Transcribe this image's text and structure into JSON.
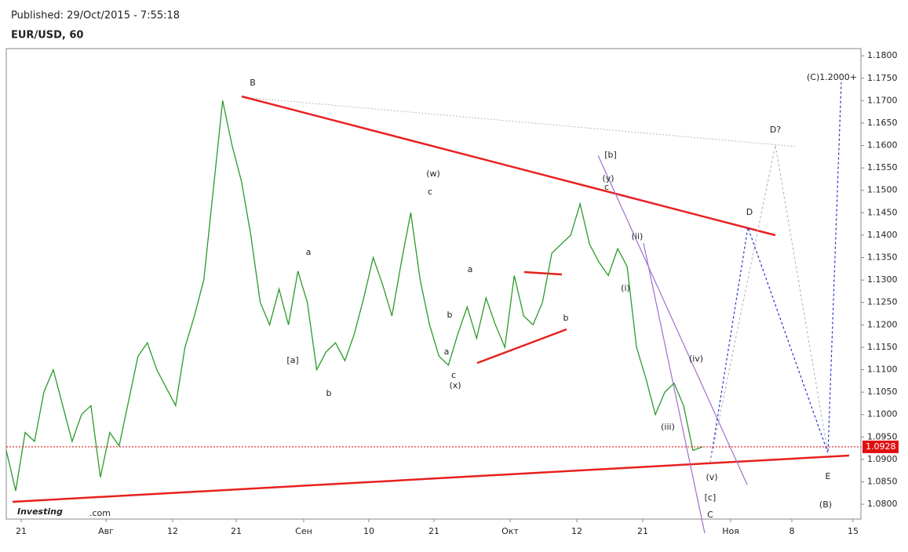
{
  "header": {
    "published": "Published: 29/Oct/2015 - 7:55:18",
    "symbol": "EUR/USD, 60"
  },
  "logo": {
    "brand": "Investing",
    "suffix": ".com"
  },
  "chart_data": {
    "type": "line",
    "series": [
      {
        "name": "EUR/USD",
        "color": "#2a9a2a",
        "values": [
          1.092,
          1.083,
          1.096,
          1.094,
          1.105,
          1.11,
          1.102,
          1.094,
          1.1,
          1.102,
          1.086,
          1.096,
          1.093,
          1.103,
          1.113,
          1.116,
          1.11,
          1.106,
          1.102,
          1.115,
          1.122,
          1.13,
          1.15,
          1.17,
          1.16,
          1.152,
          1.14,
          1.125,
          1.12,
          1.128,
          1.12,
          1.132,
          1.125,
          1.11,
          1.114,
          1.116,
          1.112,
          1.118,
          1.126,
          1.135,
          1.129,
          1.122,
          1.134,
          1.145,
          1.13,
          1.12,
          1.113,
          1.111,
          1.118,
          1.124,
          1.117,
          1.126,
          1.12,
          1.115,
          1.131,
          1.122,
          1.12,
          1.125,
          1.136,
          1.138,
          1.14,
          1.147,
          1.138,
          1.134,
          1.131,
          1.137,
          1.133,
          1.115,
          1.108,
          1.1,
          1.105,
          1.107,
          1.102,
          1.092,
          1.0928
        ]
      }
    ],
    "last_price": 1.0928,
    "ylim": [
      1.0767,
      1.1816
    ],
    "yticks": [
      {
        "value": 1.08,
        "label": "1.0800"
      },
      {
        "value": 1.085,
        "label": "1.0850"
      },
      {
        "value": 1.09,
        "label": "1.0900"
      },
      {
        "value": 1.095,
        "label": "1.0950"
      },
      {
        "value": 1.1,
        "label": "1.1000"
      },
      {
        "value": 1.105,
        "label": "1.1050"
      },
      {
        "value": 1.11,
        "label": "1.1100"
      },
      {
        "value": 1.115,
        "label": "1.1150"
      },
      {
        "value": 1.12,
        "label": "1.1200"
      },
      {
        "value": 1.125,
        "label": "1.1250"
      },
      {
        "value": 1.13,
        "label": "1.1300"
      },
      {
        "value": 1.135,
        "label": "1.1350"
      },
      {
        "value": 1.14,
        "label": "1.1400"
      },
      {
        "value": 1.145,
        "label": "1.1450"
      },
      {
        "value": 1.15,
        "label": "1.1500"
      },
      {
        "value": 1.155,
        "label": "1.1550"
      },
      {
        "value": 1.16,
        "label": "1.1600"
      },
      {
        "value": 1.165,
        "label": "1.1650"
      },
      {
        "value": 1.17,
        "label": "1.1700"
      },
      {
        "value": 1.175,
        "label": "1.1750"
      },
      {
        "value": 1.18,
        "label": "1.1800"
      }
    ],
    "x_labels": [
      "21",
      "Авг",
      "12",
      "21",
      "Сен",
      "10",
      "21",
      "Окт",
      "12",
      "21",
      "Ноя",
      "8",
      "15"
    ],
    "annotations": [
      "B",
      "a",
      "[a]",
      "b",
      "(w)",
      "c",
      "a",
      "b",
      "a",
      "c",
      "(x)",
      "b",
      "[b]",
      "(y)",
      "c",
      "(ii)",
      "(i)",
      "(iv)",
      "(iii)",
      "(v)",
      "[c]",
      "C",
      "D",
      "D?",
      "(C)1.2000+",
      "E",
      "(B)"
    ]
  }
}
